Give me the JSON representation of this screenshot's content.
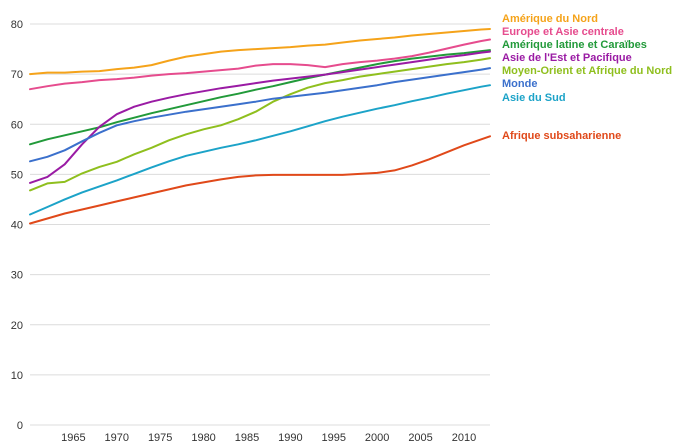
{
  "chart_data": {
    "type": "line",
    "title": "",
    "xlabel": "",
    "ylabel": "",
    "xlim": [
      1960,
      2013
    ],
    "ylim": [
      0,
      80
    ],
    "grid": true,
    "x_ticks": [
      1965,
      1970,
      1975,
      1980,
      1985,
      1990,
      1995,
      2000,
      2005,
      2010
    ],
    "y_ticks": [
      0,
      10,
      20,
      30,
      40,
      50,
      60,
      70,
      80
    ],
    "x": [
      1960,
      1962,
      1964,
      1966,
      1968,
      1970,
      1972,
      1974,
      1976,
      1978,
      1980,
      1982,
      1984,
      1986,
      1988,
      1990,
      1992,
      1994,
      1996,
      1998,
      2000,
      2002,
      2004,
      2006,
      2008,
      2010,
      2012,
      2013
    ],
    "series": [
      {
        "name": "Amérique du Nord",
        "color": "#f5a31a",
        "values": [
          70.0,
          70.3,
          70.3,
          70.5,
          70.6,
          71.0,
          71.3,
          71.8,
          72.7,
          73.5,
          74.0,
          74.5,
          74.8,
          75.0,
          75.2,
          75.4,
          75.7,
          75.9,
          76.3,
          76.7,
          77.0,
          77.3,
          77.7,
          78.0,
          78.3,
          78.6,
          78.9,
          79.0
        ]
      },
      {
        "name": "Europe et Asie centrale",
        "color": "#e64c8e",
        "values": [
          67.0,
          67.6,
          68.1,
          68.4,
          68.8,
          69.0,
          69.3,
          69.7,
          70.0,
          70.2,
          70.5,
          70.8,
          71.1,
          71.7,
          72.0,
          72.0,
          71.8,
          71.4,
          72.0,
          72.4,
          72.7,
          73.1,
          73.6,
          74.3,
          75.1,
          75.9,
          76.6,
          76.9
        ]
      },
      {
        "name": "Amérique latine et Caraïbes",
        "color": "#229a3a",
        "values": [
          56.0,
          57.0,
          57.8,
          58.6,
          59.4,
          60.4,
          61.3,
          62.2,
          63.0,
          63.8,
          64.6,
          65.4,
          66.1,
          66.9,
          67.6,
          68.4,
          69.2,
          69.9,
          70.6,
          71.3,
          72.0,
          72.6,
          73.1,
          73.5,
          73.9,
          74.2,
          74.6,
          74.8
        ]
      },
      {
        "name": "Asie de l'Est et Pacifique",
        "color": "#9a1ba4",
        "values": [
          48.3,
          49.5,
          52.0,
          56.0,
          59.5,
          62.0,
          63.5,
          64.5,
          65.3,
          66.0,
          66.6,
          67.2,
          67.7,
          68.2,
          68.7,
          69.1,
          69.5,
          69.9,
          70.4,
          70.9,
          71.4,
          71.9,
          72.4,
          72.9,
          73.4,
          73.8,
          74.3,
          74.5
        ]
      },
      {
        "name": "Moyen-Orient et Afrique du Nord",
        "color": "#8fbf1e",
        "values": [
          46.8,
          48.2,
          48.5,
          50.2,
          51.5,
          52.5,
          54.0,
          55.3,
          56.8,
          58.0,
          59.0,
          59.8,
          61.0,
          62.5,
          64.5,
          66.0,
          67.3,
          68.2,
          68.8,
          69.5,
          70.0,
          70.5,
          71.0,
          71.5,
          72.0,
          72.4,
          72.9,
          73.2
        ]
      },
      {
        "name": "Monde",
        "color": "#3b70cc",
        "values": [
          52.6,
          53.5,
          54.8,
          56.6,
          58.3,
          59.8,
          60.6,
          61.3,
          61.9,
          62.5,
          63.0,
          63.5,
          64.0,
          64.5,
          65.1,
          65.5,
          65.9,
          66.3,
          66.8,
          67.3,
          67.8,
          68.4,
          68.9,
          69.4,
          69.9,
          70.4,
          70.9,
          71.2
        ]
      },
      {
        "name": "Asie du Sud",
        "color": "#1ca3c8",
        "values": [
          42.0,
          43.5,
          45.0,
          46.4,
          47.6,
          48.8,
          50.1,
          51.4,
          52.6,
          53.7,
          54.5,
          55.3,
          56.0,
          56.8,
          57.7,
          58.6,
          59.6,
          60.6,
          61.5,
          62.3,
          63.1,
          63.8,
          64.6,
          65.3,
          66.1,
          66.8,
          67.5,
          67.8
        ]
      },
      {
        "name": "Afrique subsaharienne",
        "color": "#e0491a",
        "values": [
          40.2,
          41.2,
          42.2,
          43.0,
          43.8,
          44.6,
          45.4,
          46.2,
          47.0,
          47.8,
          48.4,
          49.0,
          49.5,
          49.8,
          49.9,
          49.9,
          49.9,
          49.9,
          49.9,
          50.1,
          50.3,
          50.8,
          51.8,
          53.0,
          54.4,
          55.8,
          57.0,
          57.6
        ]
      }
    ]
  }
}
